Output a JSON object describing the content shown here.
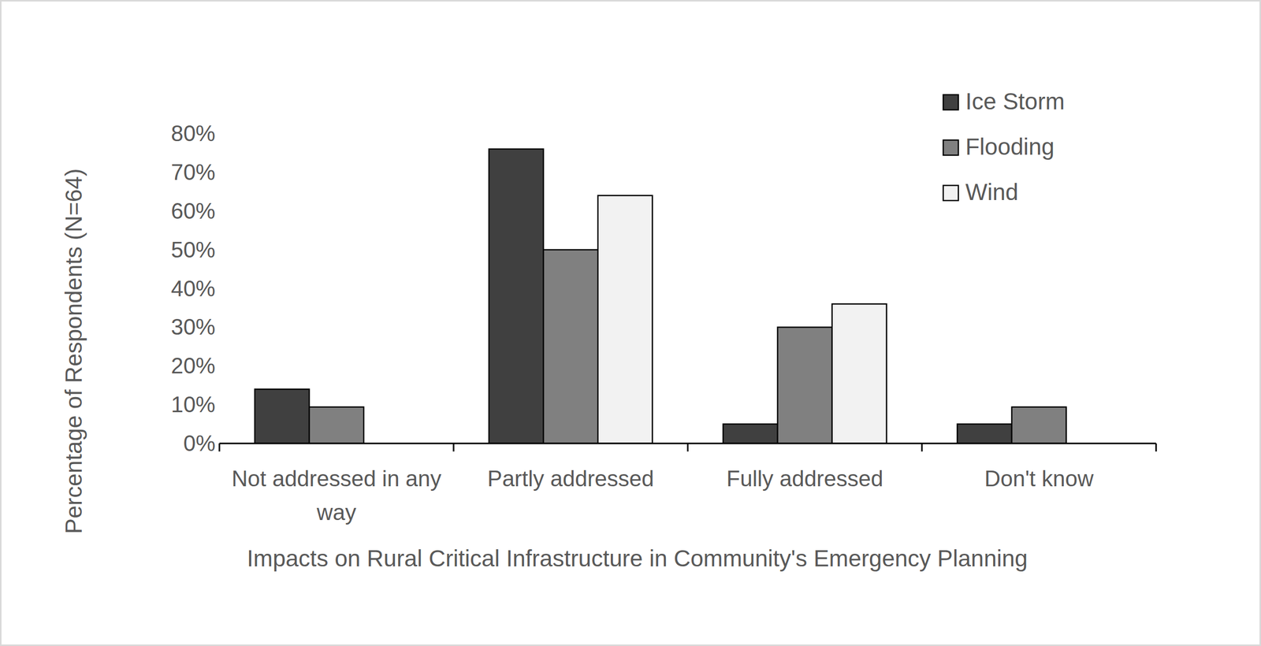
{
  "chart_data": {
    "type": "bar",
    "x_label": "Impacts on Rural Critical Infrastructure in Community's Emergency Planning",
    "y_label": "Percentage of Respondents (N=64)",
    "categories": [
      "Not addressed in any way",
      "Partly addressed",
      "Fully addressed",
      "Don't know"
    ],
    "series": [
      {
        "name": "Ice Storm",
        "color": "#404040",
        "values": [
          14,
          76,
          5,
          5
        ]
      },
      {
        "name": "Flooding",
        "color": "#808080",
        "values": [
          9.4,
          50,
          30,
          9.4
        ]
      },
      {
        "name": "Wind",
        "color": "#f2f2f2",
        "values": [
          0,
          64,
          36,
          0
        ]
      }
    ],
    "ylim": [
      0,
      80
    ],
    "yticks": [
      {
        "value": 0,
        "label": "0%"
      },
      {
        "value": 10,
        "label": "10%"
      },
      {
        "value": 20,
        "label": "20%"
      },
      {
        "value": 30,
        "label": "30%"
      },
      {
        "value": 40,
        "label": "40%"
      },
      {
        "value": 50,
        "label": "50%"
      },
      {
        "value": 60,
        "label": "60%"
      },
      {
        "value": 70,
        "label": "70%"
      },
      {
        "value": 80,
        "label": "80%"
      }
    ],
    "grid": false,
    "legend": "top-right",
    "data_labels": false
  }
}
